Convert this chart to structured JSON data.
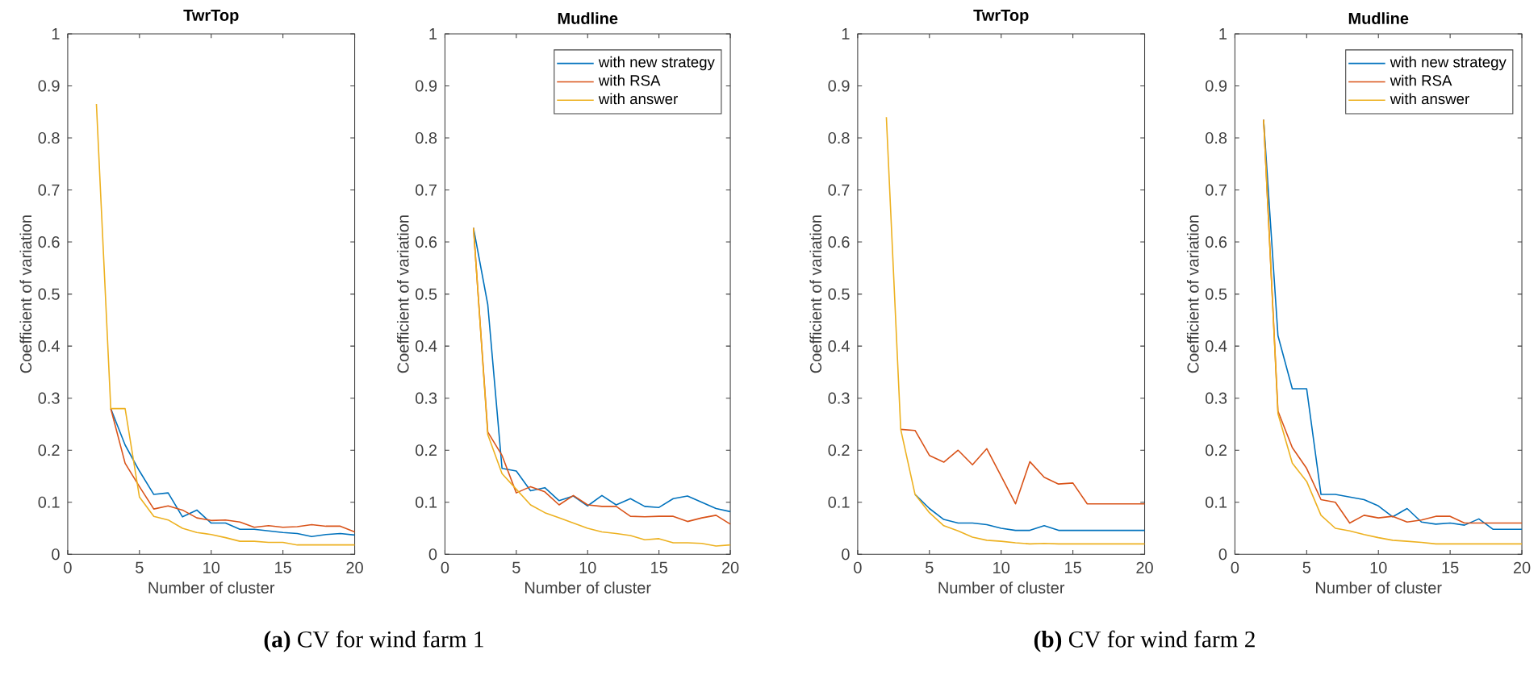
{
  "chart_data": [
    {
      "type": "line",
      "title": "TwrTop",
      "xlabel": "Number of cluster",
      "ylabel": "Coefficient of variation",
      "x": [
        2,
        3,
        4,
        5,
        6,
        7,
        8,
        9,
        10,
        11,
        12,
        13,
        14,
        15,
        16,
        17,
        18,
        19,
        20
      ],
      "series": [
        {
          "color": "#0072bd",
          "values": [
            null,
            0.28,
            0.21,
            0.16,
            0.115,
            0.118,
            0.072,
            0.085,
            0.06,
            0.06,
            0.048,
            0.048,
            0.045,
            0.042,
            0.04,
            0.034,
            0.038,
            0.04,
            0.037
          ]
        },
        {
          "color": "#d95319",
          "values": [
            null,
            0.28,
            0.175,
            0.13,
            0.087,
            0.093,
            0.085,
            0.07,
            0.065,
            0.066,
            0.062,
            0.052,
            0.055,
            0.052,
            0.053,
            0.057,
            0.054,
            0.054,
            0.043
          ]
        },
        {
          "color": "#edb120",
          "values": [
            0.865,
            0.28,
            0.28,
            0.11,
            0.073,
            0.066,
            0.05,
            0.042,
            0.038,
            0.032,
            0.025,
            0.025,
            0.023,
            0.023,
            0.018,
            0.018,
            0.018,
            0.018,
            0.018
          ]
        }
      ],
      "xlim": [
        0,
        20
      ],
      "ylim": [
        0,
        1
      ],
      "xticks": [
        0,
        5,
        10,
        15,
        20
      ],
      "yticks": [
        0,
        0.1,
        0.2,
        0.3,
        0.4,
        0.5,
        0.6,
        0.7,
        0.8,
        0.9,
        1
      ],
      "annotations": [
        "**(a)** CV for wind farm 1"
      ]
    },
    {
      "type": "line",
      "title": "Mudline",
      "xlabel": "Number of cluster",
      "ylabel": "Coefficient of variation",
      "x": [
        2,
        3,
        4,
        5,
        6,
        7,
        8,
        9,
        10,
        11,
        12,
        13,
        14,
        15,
        16,
        17,
        18,
        19,
        20
      ],
      "series": [
        {
          "name": "with new strategy",
          "color": "#0072bd",
          "values": [
            0.627,
            0.48,
            0.165,
            0.16,
            0.122,
            0.128,
            0.103,
            0.112,
            0.093,
            0.113,
            0.095,
            0.107,
            0.092,
            0.09,
            0.107,
            0.112,
            0.1,
            0.088,
            0.082
          ]
        },
        {
          "name": "with RSA",
          "color": "#d95319",
          "values": [
            0.627,
            0.235,
            0.19,
            0.118,
            0.13,
            0.12,
            0.095,
            0.113,
            0.095,
            0.092,
            0.092,
            0.073,
            0.072,
            0.073,
            0.073,
            0.063,
            0.07,
            0.075,
            0.058
          ]
        },
        {
          "name": "with answer",
          "color": "#edb120",
          "values": [
            0.627,
            0.23,
            0.155,
            0.125,
            0.095,
            0.08,
            0.07,
            0.06,
            0.05,
            0.043,
            0.04,
            0.036,
            0.028,
            0.03,
            0.022,
            0.022,
            0.021,
            0.016,
            0.018
          ]
        }
      ],
      "xlim": [
        0,
        20
      ],
      "ylim": [
        0,
        1
      ],
      "xticks": [
        0,
        5,
        10,
        15,
        20
      ],
      "yticks": [
        0,
        0.1,
        0.2,
        0.3,
        0.4,
        0.5,
        0.6,
        0.7,
        0.8,
        0.9,
        1
      ],
      "legend": "top right"
    },
    {
      "type": "line",
      "title": "TwrTop",
      "xlabel": "Number of cluster",
      "ylabel": "Coefficient of variation",
      "x": [
        2,
        3,
        4,
        5,
        6,
        7,
        8,
        9,
        10,
        11,
        12,
        13,
        14,
        15,
        16,
        17,
        18,
        19,
        20
      ],
      "series": [
        {
          "color": "#0072bd",
          "values": [
            null,
            null,
            0.115,
            0.088,
            0.067,
            0.06,
            0.06,
            0.057,
            0.05,
            0.046,
            0.046,
            0.055,
            0.046,
            0.046,
            0.046,
            0.046,
            0.046,
            0.046,
            0.046
          ]
        },
        {
          "color": "#d95319",
          "values": [
            null,
            0.24,
            0.238,
            0.19,
            0.177,
            0.2,
            0.172,
            0.203,
            0.15,
            0.097,
            0.178,
            0.148,
            0.135,
            0.137,
            0.097,
            0.097,
            0.097,
            0.097,
            0.097
          ]
        },
        {
          "color": "#edb120",
          "values": [
            0.84,
            0.24,
            0.115,
            0.08,
            0.055,
            0.045,
            0.033,
            0.027,
            0.025,
            0.022,
            0.02,
            0.021,
            0.02,
            0.02,
            0.02,
            0.02,
            0.02,
            0.02,
            0.02
          ]
        }
      ],
      "xlim": [
        0,
        20
      ],
      "ylim": [
        0,
        1
      ],
      "xticks": [
        0,
        5,
        10,
        15,
        20
      ],
      "yticks": [
        0,
        0.1,
        0.2,
        0.3,
        0.4,
        0.5,
        0.6,
        0.7,
        0.8,
        0.9,
        1
      ],
      "annotations": [
        "**(b)** CV for wind farm 2"
      ]
    },
    {
      "type": "line",
      "title": "Mudline",
      "xlabel": "Number of cluster",
      "ylabel": "Coefficient of variation",
      "x": [
        2,
        3,
        4,
        5,
        6,
        7,
        8,
        9,
        10,
        11,
        12,
        13,
        14,
        15,
        16,
        17,
        18,
        19,
        20
      ],
      "series": [
        {
          "name": "with new strategy",
          "color": "#0072bd",
          "values": [
            0.835,
            0.42,
            0.318,
            0.318,
            0.115,
            0.115,
            0.11,
            0.105,
            0.093,
            0.072,
            0.088,
            0.062,
            0.058,
            0.06,
            0.056,
            0.068,
            0.048,
            0.048,
            0.048
          ]
        },
        {
          "name": "with RSA",
          "color": "#d95319",
          "values": [
            0.835,
            0.275,
            0.205,
            0.165,
            0.105,
            0.1,
            0.06,
            0.075,
            0.07,
            0.073,
            0.062,
            0.066,
            0.073,
            0.073,
            0.06,
            0.06,
            0.06,
            0.06,
            0.06
          ]
        },
        {
          "name": "with answer",
          "color": "#edb120",
          "values": [
            0.835,
            0.27,
            0.175,
            0.14,
            0.075,
            0.05,
            0.045,
            0.038,
            0.032,
            0.027,
            0.025,
            0.023,
            0.02,
            0.02,
            0.02,
            0.02,
            0.02,
            0.02,
            0.02
          ]
        }
      ],
      "xlim": [
        0,
        20
      ],
      "ylim": [
        0,
        1
      ],
      "xticks": [
        0,
        5,
        10,
        15,
        20
      ],
      "yticks": [
        0,
        0.1,
        0.2,
        0.3,
        0.4,
        0.5,
        0.6,
        0.7,
        0.8,
        0.9,
        1
      ],
      "legend": "top right"
    }
  ]
}
